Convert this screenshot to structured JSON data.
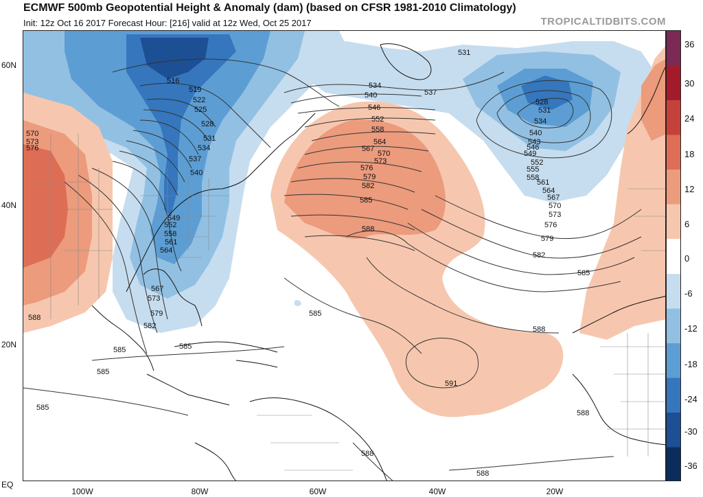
{
  "header": {
    "title": "ECMWF 500mb Geopotential Height & Anomaly (dam) (based on CFSR 1981-2010 Climatology)",
    "subtitle": "Init: 12z Oct 16 2017   Forecast Hour: [216]   valid at 12z Wed, Oct 25 2017",
    "credit": "TROPICALTIDBITS.COM"
  },
  "axes": {
    "lat_labels": [
      "60N",
      "40N",
      "20N",
      "EQ"
    ],
    "lon_labels": [
      "100W",
      "80W",
      "60W",
      "40W",
      "20W"
    ]
  },
  "colorbar": {
    "labels": [
      "36",
      "30",
      "24",
      "18",
      "12",
      "6",
      "0",
      "-6",
      "-12",
      "-18",
      "-24",
      "-30",
      "-36"
    ],
    "colors": [
      "#7a2a55",
      "#a31b2a",
      "#c7413b",
      "#dd6e55",
      "#ec9b7d",
      "#f6c7ae",
      "#ffffff",
      "#c6ddef",
      "#92c0e3",
      "#5c9ed4",
      "#3576bd",
      "#1d4f94",
      "#0b2d5e"
    ]
  },
  "contours": {
    "labels": [
      "531",
      "516",
      "519",
      "522",
      "525",
      "528",
      "531",
      "534",
      "537",
      "540",
      "534",
      "537",
      "540",
      "546",
      "552",
      "558",
      "564",
      "567",
      "570",
      "573",
      "576",
      "579",
      "582",
      "585",
      "588",
      "528",
      "531",
      "534",
      "540",
      "543",
      "546",
      "549",
      "552",
      "555",
      "558",
      "561",
      "564",
      "567",
      "570",
      "573",
      "576",
      "579",
      "582",
      "585",
      "570",
      "573",
      "576",
      "549",
      "552",
      "558",
      "561",
      "564",
      "567",
      "573",
      "579",
      "582",
      "588",
      "585",
      "585",
      "585",
      "585",
      "585",
      "591",
      "588",
      "588",
      "588",
      "588"
    ]
  },
  "colors": {
    "land": "#ffffff",
    "ocean": "#ffffff",
    "contour_line": "#333333",
    "border": "#888888"
  }
}
